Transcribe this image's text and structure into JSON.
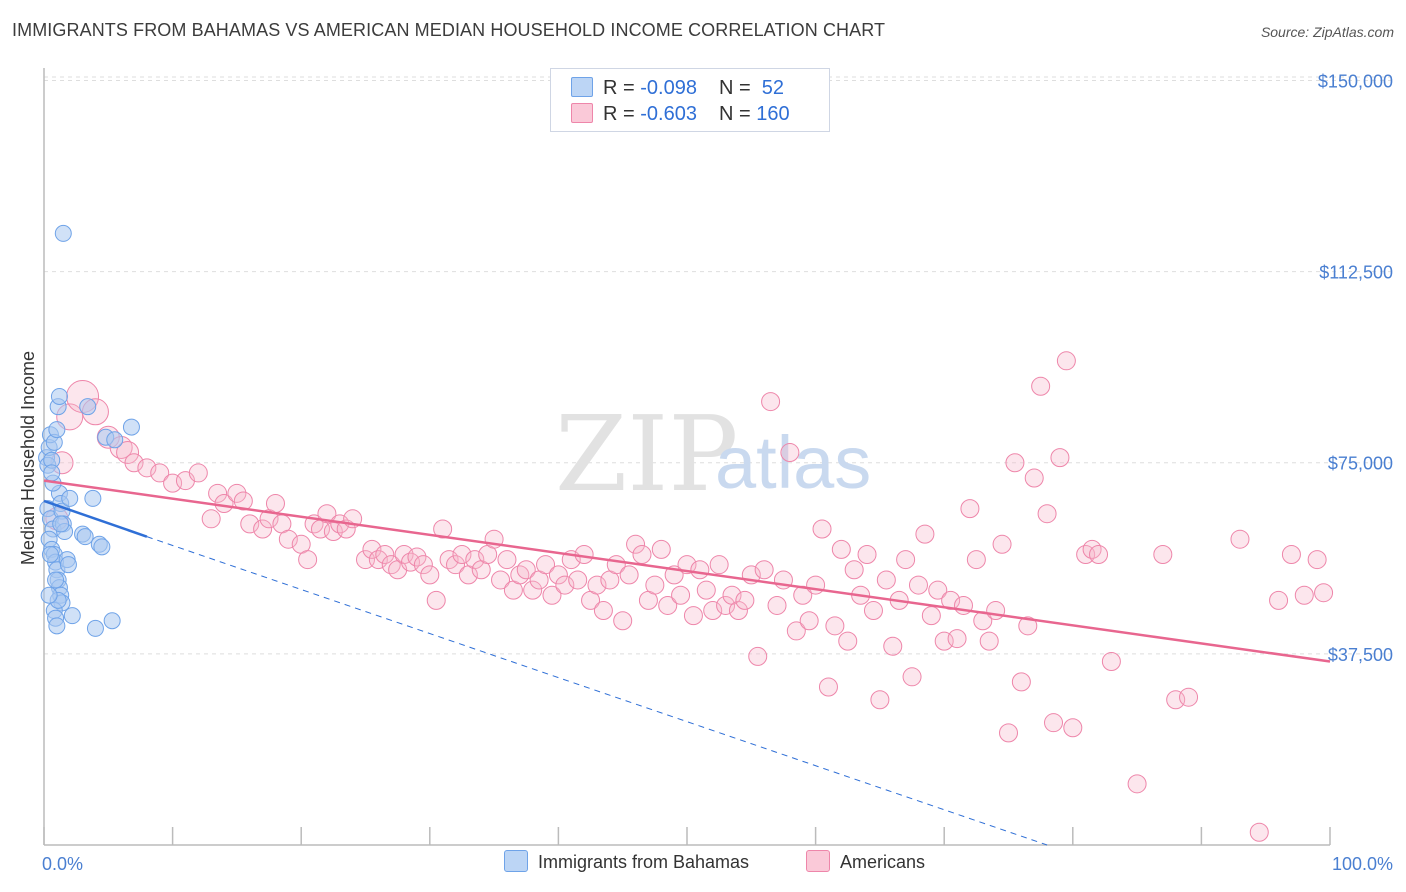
{
  "title": "IMMIGRANTS FROM BAHAMAS VS AMERICAN MEDIAN HOUSEHOLD INCOME CORRELATION CHART",
  "source": "Source: ZipAtlas.com",
  "watermark": {
    "zip": "ZIP",
    "atlas": "atlas"
  },
  "legend_top": {
    "rows": [
      {
        "r_label": "R = ",
        "r_value": "-0.098",
        "n_label": "N = ",
        "n_value": " 52",
        "color": "#a9c8f0"
      },
      {
        "r_label": "R = ",
        "r_value": "-0.603",
        "n_label": "N = ",
        "n_value": "160",
        "color": "#f6b8cc"
      }
    ]
  },
  "legend_bottom": [
    {
      "label": "Immigrants from Bahamas",
      "color": "#a9c8f0"
    },
    {
      "label": "Americans",
      "color": "#f6b8cc"
    }
  ],
  "chart_data": {
    "type": "scatter",
    "title": "IMMIGRANTS FROM BAHAMAS VS AMERICAN MEDIAN HOUSEHOLD INCOME CORRELATION CHART",
    "xlabel": "",
    "ylabel": "Median Household Income",
    "x_tick_labels": [
      "0.0%",
      "100.0%"
    ],
    "y_ticks": [
      {
        "value": 150000,
        "label": "$150,000"
      },
      {
        "value": 112500,
        "label": "$112,500"
      },
      {
        "value": 75000,
        "label": "$75,000"
      },
      {
        "value": 37500,
        "label": "$37,500"
      }
    ],
    "xlim": [
      0,
      100
    ],
    "ylim": [
      0,
      155000
    ],
    "grid": true,
    "legend_position": "top-center",
    "colors": {
      "bahamas": "#6fa3e8",
      "americans": "#ee86aa",
      "bahamas_line": "#2f6fd6",
      "americans_line": "#e8668f"
    },
    "series": [
      {
        "name": "Immigrants from Bahamas",
        "r": -0.098,
        "n": 52,
        "trend": {
          "x0": 0,
          "y0": 67500,
          "x1": 8,
          "y1": 60500,
          "dash_to_x": 78,
          "dash_to_y": 0
        },
        "points": [
          [
            0.2,
            76000
          ],
          [
            0.3,
            74500
          ],
          [
            0.4,
            78000
          ],
          [
            0.5,
            80500
          ],
          [
            0.6,
            75500
          ],
          [
            0.3,
            66000
          ],
          [
            0.5,
            64000
          ],
          [
            0.7,
            62000
          ],
          [
            0.4,
            60000
          ],
          [
            0.6,
            58000
          ],
          [
            0.8,
            57000
          ],
          [
            0.9,
            55500
          ],
          [
            1.0,
            54000
          ],
          [
            1.1,
            52000
          ],
          [
            1.2,
            50500
          ],
          [
            1.3,
            49000
          ],
          [
            1.4,
            47500
          ],
          [
            0.8,
            46000
          ],
          [
            0.9,
            44500
          ],
          [
            1.0,
            43000
          ],
          [
            1.1,
            48000
          ],
          [
            1.2,
            69000
          ],
          [
            1.3,
            67000
          ],
          [
            1.4,
            65500
          ],
          [
            1.5,
            63000
          ],
          [
            1.6,
            61500
          ],
          [
            0.7,
            71000
          ],
          [
            0.6,
            73000
          ],
          [
            0.8,
            79000
          ],
          [
            1.0,
            81500
          ],
          [
            1.1,
            86000
          ],
          [
            1.2,
            88000
          ],
          [
            1.5,
            120000
          ],
          [
            1.8,
            56000
          ],
          [
            1.9,
            55000
          ],
          [
            2.0,
            68000
          ],
          [
            2.2,
            45000
          ],
          [
            3.0,
            61000
          ],
          [
            3.2,
            60500
          ],
          [
            3.4,
            86000
          ],
          [
            3.8,
            68000
          ],
          [
            4.0,
            42500
          ],
          [
            4.3,
            59000
          ],
          [
            4.5,
            58500
          ],
          [
            4.8,
            80000
          ],
          [
            5.3,
            44000
          ],
          [
            5.5,
            79500
          ],
          [
            6.8,
            82000
          ],
          [
            0.4,
            49000
          ],
          [
            0.9,
            52000
          ],
          [
            1.3,
            63000
          ],
          [
            0.5,
            57000
          ]
        ]
      },
      {
        "name": "Americans",
        "r": -0.603,
        "n": 160,
        "trend": {
          "x0": 0,
          "y0": 71500,
          "x1": 100,
          "y1": 36000
        },
        "points": [
          [
            1.0,
            64000
          ],
          [
            1.4,
            75000
          ],
          [
            2.0,
            84000
          ],
          [
            3.0,
            88000
          ],
          [
            4.0,
            85000
          ],
          [
            5.0,
            80000
          ],
          [
            6.0,
            78000
          ],
          [
            6.5,
            77000
          ],
          [
            7.0,
            75000
          ],
          [
            8.0,
            74000
          ],
          [
            9.0,
            73000
          ],
          [
            10.0,
            71000
          ],
          [
            11.0,
            71500
          ],
          [
            12.0,
            73000
          ],
          [
            13.0,
            64000
          ],
          [
            13.5,
            69000
          ],
          [
            14.0,
            67000
          ],
          [
            15.0,
            69000
          ],
          [
            15.5,
            67500
          ],
          [
            16.0,
            63000
          ],
          [
            17.0,
            62000
          ],
          [
            17.5,
            64000
          ],
          [
            18.0,
            67000
          ],
          [
            18.5,
            63000
          ],
          [
            19.0,
            60000
          ],
          [
            20.0,
            59000
          ],
          [
            20.5,
            56000
          ],
          [
            21.0,
            63000
          ],
          [
            21.5,
            62000
          ],
          [
            22.0,
            65000
          ],
          [
            22.5,
            61500
          ],
          [
            23.0,
            63000
          ],
          [
            23.5,
            62000
          ],
          [
            24.0,
            64000
          ],
          [
            25.0,
            56000
          ],
          [
            25.5,
            58000
          ],
          [
            26.0,
            56000
          ],
          [
            26.5,
            57000
          ],
          [
            27.0,
            55000
          ],
          [
            27.5,
            54000
          ],
          [
            28.0,
            57000
          ],
          [
            28.5,
            55500
          ],
          [
            29.0,
            56500
          ],
          [
            29.5,
            55000
          ],
          [
            30.0,
            53000
          ],
          [
            30.5,
            48000
          ],
          [
            31.0,
            62000
          ],
          [
            31.5,
            56000
          ],
          [
            32.0,
            55000
          ],
          [
            32.5,
            57000
          ],
          [
            33.0,
            53000
          ],
          [
            33.5,
            56000
          ],
          [
            34.0,
            54000
          ],
          [
            34.5,
            57000
          ],
          [
            35.0,
            60000
          ],
          [
            35.5,
            52000
          ],
          [
            36.0,
            56000
          ],
          [
            36.5,
            50000
          ],
          [
            37.0,
            53000
          ],
          [
            37.5,
            54000
          ],
          [
            38.0,
            50000
          ],
          [
            38.5,
            52000
          ],
          [
            39.0,
            55000
          ],
          [
            39.5,
            49000
          ],
          [
            40.0,
            53000
          ],
          [
            40.5,
            51000
          ],
          [
            41.0,
            56000
          ],
          [
            41.5,
            52000
          ],
          [
            42.0,
            57000
          ],
          [
            42.5,
            48000
          ],
          [
            43.0,
            51000
          ],
          [
            43.5,
            46000
          ],
          [
            44.0,
            52000
          ],
          [
            44.5,
            55000
          ],
          [
            45.0,
            44000
          ],
          [
            45.5,
            53000
          ],
          [
            46.0,
            59000
          ],
          [
            46.5,
            57000
          ],
          [
            47.0,
            48000
          ],
          [
            47.5,
            51000
          ],
          [
            48.0,
            58000
          ],
          [
            48.5,
            47000
          ],
          [
            49.0,
            53000
          ],
          [
            49.5,
            49000
          ],
          [
            50.0,
            55000
          ],
          [
            50.5,
            45000
          ],
          [
            51.0,
            54000
          ],
          [
            51.5,
            50000
          ],
          [
            52.0,
            46000
          ],
          [
            52.5,
            55000
          ],
          [
            53.0,
            47000
          ],
          [
            53.5,
            49000
          ],
          [
            54.0,
            46000
          ],
          [
            54.5,
            48000
          ],
          [
            55.0,
            53000
          ],
          [
            55.5,
            37000
          ],
          [
            56.0,
            54000
          ],
          [
            56.5,
            87000
          ],
          [
            57.0,
            47000
          ],
          [
            57.5,
            52000
          ],
          [
            58.0,
            77000
          ],
          [
            58.5,
            42000
          ],
          [
            59.0,
            49000
          ],
          [
            59.5,
            44000
          ],
          [
            60.0,
            51000
          ],
          [
            60.5,
            62000
          ],
          [
            61.0,
            31000
          ],
          [
            61.5,
            43000
          ],
          [
            62.0,
            58000
          ],
          [
            62.5,
            40000
          ],
          [
            63.0,
            54000
          ],
          [
            63.5,
            49000
          ],
          [
            64.0,
            57000
          ],
          [
            64.5,
            46000
          ],
          [
            65.0,
            28500
          ],
          [
            65.5,
            52000
          ],
          [
            66.0,
            39000
          ],
          [
            66.5,
            48000
          ],
          [
            67.0,
            56000
          ],
          [
            67.5,
            33000
          ],
          [
            68.0,
            51000
          ],
          [
            68.5,
            61000
          ],
          [
            69.0,
            45000
          ],
          [
            69.5,
            50000
          ],
          [
            70.0,
            40000
          ],
          [
            70.5,
            48000
          ],
          [
            71.0,
            40500
          ],
          [
            71.5,
            47000
          ],
          [
            72.0,
            66000
          ],
          [
            72.5,
            56000
          ],
          [
            73.0,
            44000
          ],
          [
            73.5,
            40000
          ],
          [
            74.0,
            46000
          ],
          [
            74.5,
            59000
          ],
          [
            75.0,
            22000
          ],
          [
            75.5,
            75000
          ],
          [
            76.0,
            32000
          ],
          [
            76.5,
            43000
          ],
          [
            77.0,
            72000
          ],
          [
            77.5,
            90000
          ],
          [
            78.0,
            65000
          ],
          [
            78.5,
            24000
          ],
          [
            79.0,
            76000
          ],
          [
            79.5,
            95000
          ],
          [
            80.0,
            23000
          ],
          [
            81.0,
            57000
          ],
          [
            81.5,
            58000
          ],
          [
            82.0,
            57000
          ],
          [
            83.0,
            36000
          ],
          [
            85.0,
            12000
          ],
          [
            87.0,
            57000
          ],
          [
            88.0,
            28500
          ],
          [
            89.0,
            29000
          ],
          [
            93.0,
            60000
          ],
          [
            94.5,
            2500
          ],
          [
            96.0,
            48000
          ],
          [
            97.0,
            57000
          ],
          [
            98.0,
            49000
          ],
          [
            99.0,
            56000
          ],
          [
            99.5,
            49500
          ]
        ]
      }
    ]
  }
}
